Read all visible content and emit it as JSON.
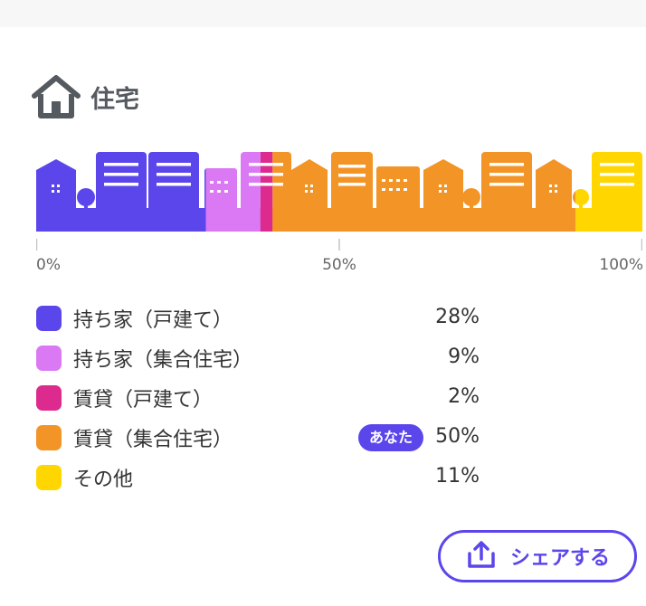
{
  "section": {
    "title": "住宅",
    "icon": "house-icon"
  },
  "chart_data": {
    "type": "bar",
    "orientation": "horizontal-stacked",
    "xlim": [
      0,
      100
    ],
    "ticks": [
      "0%",
      "50%",
      "100%"
    ],
    "categories": [
      "持ち家（戸建て）",
      "持ち家（集合住宅）",
      "賃貸（戸建て）",
      "賃貸（集合住宅）",
      "その他"
    ],
    "values": [
      28,
      9,
      2,
      50,
      11
    ],
    "value_labels": [
      "28%",
      "9%",
      "2%",
      "50%",
      "11%"
    ],
    "colors": [
      "#5b46ec",
      "#db79f4",
      "#dc2a8f",
      "#f39426",
      "#ffd600"
    ],
    "highlight": {
      "index": 3,
      "badge": "あなた"
    }
  },
  "share": {
    "label": "シェアする",
    "icon": "share-upload-icon",
    "color": "#5b46ec"
  }
}
